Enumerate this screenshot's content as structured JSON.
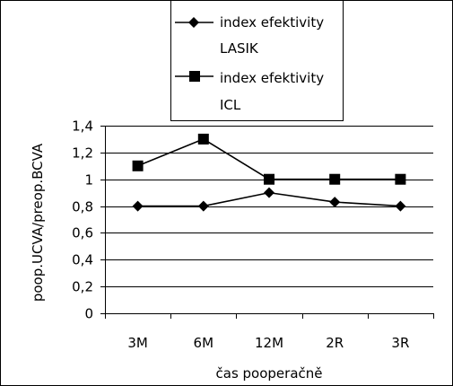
{
  "chart_data": {
    "type": "line",
    "title": "",
    "xlabel": "čas pooperačně",
    "ylabel": "poop.UCVA/preop.BCVA",
    "categories": [
      "3M",
      "6M",
      "12M",
      "2R",
      "3R"
    ],
    "y_ticks": [
      "0",
      "0,2",
      "0,4",
      "0,6",
      "0,8",
      "1",
      "1,2",
      "1,4"
    ],
    "ylim": [
      0,
      1.4
    ],
    "grid": true,
    "legend_position": "top",
    "series": [
      {
        "name_lines": [
          "index efektivity",
          "LASIK"
        ],
        "marker": "diamond",
        "color": "#000000",
        "values": [
          0.8,
          0.8,
          0.9,
          0.83,
          0.8
        ]
      },
      {
        "name_lines": [
          "index efektivity",
          "ICL"
        ],
        "marker": "square",
        "color": "#000000",
        "values": [
          1.1,
          1.3,
          1.0,
          1.0,
          1.0
        ]
      }
    ]
  }
}
